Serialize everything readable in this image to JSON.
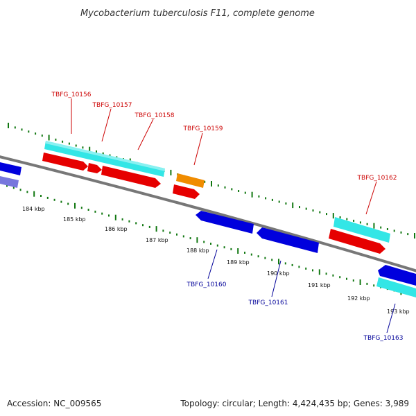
{
  "header": {
    "title": "Mycobacterium tuberculosis F11, complete genome"
  },
  "footer": {
    "accession": "Accession: NC_009565",
    "summary": "Topology: circular; Length: 4,424,435 bp; Genes: 3,989"
  },
  "colors": {
    "forward_label": "#cc0000",
    "reverse_label": "#000099",
    "backbone": "#777777",
    "tick": "#117711",
    "cyan": "#33e6e6",
    "red": "#e60000",
    "blue": "#0000dd",
    "orange": "#f08c00",
    "lavender": "#7777dd"
  },
  "kbp_labels": [
    "184 kbp",
    "185 kbp",
    "186 kbp",
    "187 kbp",
    "188 kbp",
    "189 kbp",
    "190 kbp",
    "191 kbp",
    "192 kbp",
    "193 kbp"
  ],
  "gene_labels": {
    "forward": [
      "TBFG_10156",
      "TBFG_10157",
      "TBFG_10158",
      "TBFG_10159",
      "TBFG_10162"
    ],
    "reverse": [
      "TBFG_10160",
      "TBFG_10161",
      "TBFG_10163"
    ]
  }
}
